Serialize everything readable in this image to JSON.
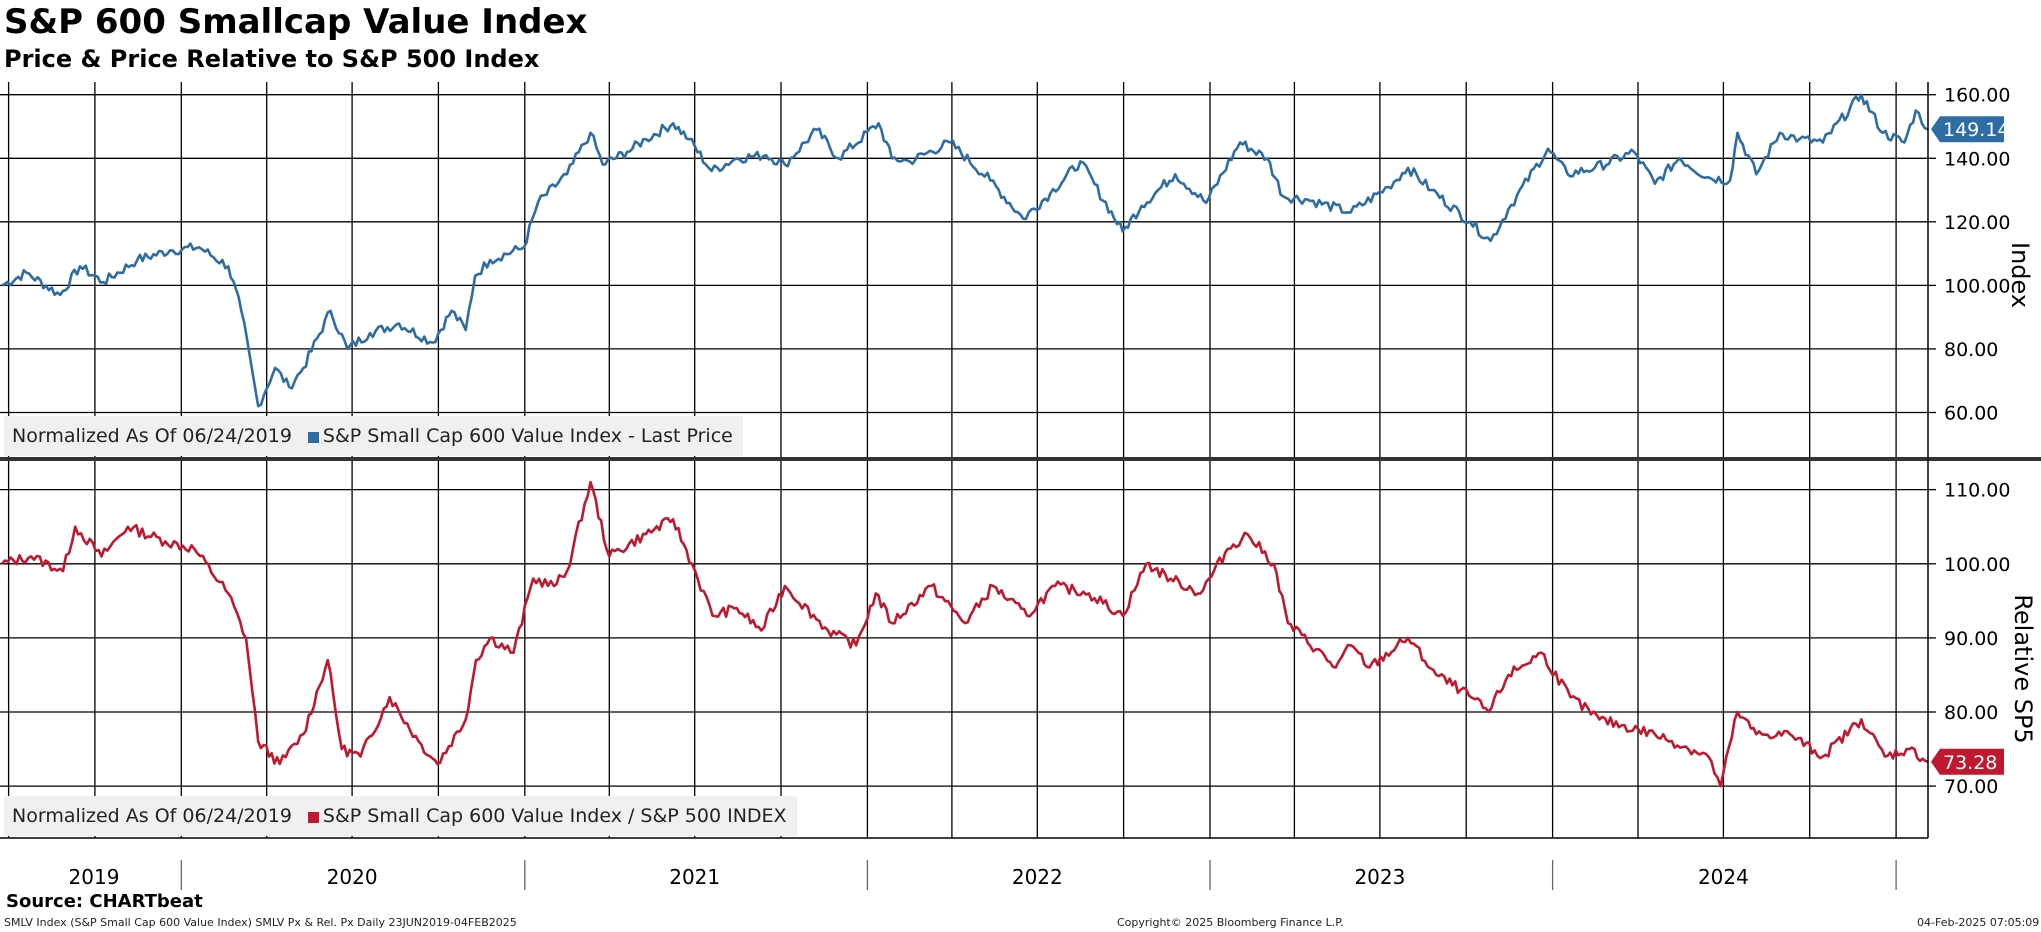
{
  "header": {
    "title": "S&P 600 Smallcap Value Index",
    "subtitle": "Price & Price Relative to S&P 500 Index"
  },
  "footer": {
    "source": "Source: CHARTbeat",
    "description": "SMLV Index (S&P Small Cap 600 Value Index) SMLV Px & Rel. Px  Daily 23JUN2019-04FEB2025",
    "copyright": "Copyright© 2025 Bloomberg Finance L.P.",
    "timestamp": "04-Feb-2025 07:05:09"
  },
  "colors": {
    "price_series": "#2e6da4",
    "relative_series": "#c0182e",
    "grid": "#000000",
    "legend_bg": "#f0f0f0"
  },
  "chart_data": [
    {
      "type": "line",
      "panel": "top",
      "legend_prefix": "Normalized As Of 06/24/2019",
      "ylabel": "Index",
      "ylim": [
        46,
        164
      ],
      "yticks": [
        60,
        80,
        100,
        120,
        140,
        160
      ],
      "ytick_labels": [
        "60.00",
        "80.00",
        "100.00",
        "120.00",
        "140.00",
        "160.00"
      ],
      "last_value_label": "149.14",
      "grid": true,
      "series": [
        {
          "name": "S&P Small Cap 600 Value Index - Last Price",
          "points": [
            [
              "2019-06-24",
              100
            ],
            [
              "2019-07-20",
              104
            ],
            [
              "2019-08-25",
              97
            ],
            [
              "2019-09-15",
              106
            ],
            [
              "2019-10-10",
              101
            ],
            [
              "2019-11-15",
              108
            ],
            [
              "2019-12-20",
              111
            ],
            [
              "2020-01-20",
              112
            ],
            [
              "2020-02-20",
              106
            ],
            [
              "2020-03-05",
              92
            ],
            [
              "2020-03-23",
              62
            ],
            [
              "2020-04-10",
              74
            ],
            [
              "2020-04-25",
              68
            ],
            [
              "2020-05-10",
              74
            ],
            [
              "2020-06-08",
              92
            ],
            [
              "2020-06-26",
              80
            ],
            [
              "2020-07-20",
              85
            ],
            [
              "2020-08-20",
              88
            ],
            [
              "2020-09-25",
              82
            ],
            [
              "2020-10-15",
              92
            ],
            [
              "2020-10-30",
              86
            ],
            [
              "2020-11-09",
              103
            ],
            [
              "2020-11-25",
              108
            ],
            [
              "2020-12-31",
              112
            ],
            [
              "2021-01-15",
              126
            ],
            [
              "2021-02-15",
              135
            ],
            [
              "2021-03-12",
              148
            ],
            [
              "2021-03-25",
              138
            ],
            [
              "2021-04-20",
              142
            ],
            [
              "2021-05-10",
              146
            ],
            [
              "2021-06-08",
              151
            ],
            [
              "2021-06-25",
              146
            ],
            [
              "2021-07-19",
              136
            ],
            [
              "2021-08-15",
              140
            ],
            [
              "2021-09-15",
              141
            ],
            [
              "2021-10-05",
              138
            ],
            [
              "2021-11-08",
              149
            ],
            [
              "2021-12-01",
              140
            ],
            [
              "2022-01-13",
              151
            ],
            [
              "2022-01-27",
              140
            ],
            [
              "2022-02-15",
              139
            ],
            [
              "2022-03-30",
              145
            ],
            [
              "2022-05-12",
              133
            ],
            [
              "2022-06-16",
              121
            ],
            [
              "2022-07-15",
              129
            ],
            [
              "2022-08-16",
              139
            ],
            [
              "2022-09-30",
              117
            ],
            [
              "2022-10-20",
              125
            ],
            [
              "2022-11-25",
              135
            ],
            [
              "2022-12-28",
              126
            ],
            [
              "2023-02-02",
              145
            ],
            [
              "2023-03-03",
              140
            ],
            [
              "2023-03-20",
              128
            ],
            [
              "2023-04-15",
              127
            ],
            [
              "2023-05-31",
              123
            ],
            [
              "2023-07-10",
              131
            ],
            [
              "2023-07-31",
              137
            ],
            [
              "2023-08-25",
              130
            ],
            [
              "2023-10-05",
              120
            ],
            [
              "2023-10-27",
              114
            ],
            [
              "2023-11-15",
              124
            ],
            [
              "2023-12-27",
              143
            ],
            [
              "2024-01-17",
              135
            ],
            [
              "2024-02-15",
              137
            ],
            [
              "2024-03-28",
              142
            ],
            [
              "2024-04-19",
              132
            ],
            [
              "2024-05-15",
              140
            ],
            [
              "2024-06-14",
              134
            ],
            [
              "2024-07-08",
              133
            ],
            [
              "2024-07-16",
              148
            ],
            [
              "2024-08-05",
              135
            ],
            [
              "2024-08-30",
              148
            ],
            [
              "2024-09-20",
              146
            ],
            [
              "2024-10-15",
              145
            ],
            [
              "2024-11-25",
              160
            ],
            [
              "2024-12-18",
              148
            ],
            [
              "2025-01-10",
              145
            ],
            [
              "2025-01-22",
              155
            ],
            [
              "2025-02-04",
              149.14
            ]
          ]
        }
      ]
    },
    {
      "type": "line",
      "panel": "bottom",
      "legend_prefix": "Normalized As Of 06/24/2019",
      "ylabel": "Relative SP5",
      "ylim": [
        63,
        114
      ],
      "yticks": [
        70,
        80,
        90,
        100,
        110
      ],
      "ytick_labels": [
        "70.00",
        "80.00",
        "90.00",
        "100.00",
        "110.00"
      ],
      "last_value_label": "73.28",
      "grid": true,
      "series": [
        {
          "name": "S&P Small Cap 600 Value Index / S&P 500 INDEX",
          "points": [
            [
              "2019-06-24",
              100
            ],
            [
              "2019-07-25",
              101
            ],
            [
              "2019-08-28",
              99
            ],
            [
              "2019-09-10",
              105
            ],
            [
              "2019-10-08",
              101
            ],
            [
              "2019-11-05",
              105
            ],
            [
              "2019-12-15",
              103
            ],
            [
              "2020-01-15",
              102
            ],
            [
              "2020-02-20",
              96
            ],
            [
              "2020-03-10",
              90
            ],
            [
              "2020-03-23",
              76
            ],
            [
              "2020-04-15",
              73
            ],
            [
              "2020-05-10",
              77
            ],
            [
              "2020-06-05",
              87
            ],
            [
              "2020-06-20",
              75
            ],
            [
              "2020-07-10",
              74
            ],
            [
              "2020-08-10",
              82
            ],
            [
              "2020-09-10",
              76
            ],
            [
              "2020-09-30",
              73
            ],
            [
              "2020-10-30",
              79
            ],
            [
              "2020-11-10",
              87
            ],
            [
              "2020-11-25",
              90
            ],
            [
              "2020-12-20",
              88
            ],
            [
              "2021-01-10",
              98
            ],
            [
              "2021-02-01",
              97
            ],
            [
              "2021-02-15",
              99
            ],
            [
              "2021-03-12",
              111
            ],
            [
              "2021-04-01",
              101
            ],
            [
              "2021-05-10",
              104
            ],
            [
              "2021-06-08",
              106
            ],
            [
              "2021-06-28",
              100
            ],
            [
              "2021-07-20",
              93
            ],
            [
              "2021-08-15",
              94
            ],
            [
              "2021-09-10",
              91
            ],
            [
              "2021-10-05",
              97
            ],
            [
              "2021-11-20",
              91
            ],
            [
              "2021-12-20",
              89
            ],
            [
              "2022-01-10",
              96
            ],
            [
              "2022-01-27",
              92
            ],
            [
              "2022-03-10",
              97
            ],
            [
              "2022-04-15",
              92
            ],
            [
              "2022-05-15",
              97
            ],
            [
              "2022-06-20",
              93
            ],
            [
              "2022-07-20",
              97
            ],
            [
              "2022-08-25",
              96
            ],
            [
              "2022-09-30",
              93
            ],
            [
              "2022-10-25",
              100
            ],
            [
              "2022-11-20",
              98
            ],
            [
              "2022-12-22",
              96
            ],
            [
              "2023-01-20",
              102
            ],
            [
              "2023-02-10",
              104
            ],
            [
              "2023-03-10",
              100
            ],
            [
              "2023-03-25",
              92
            ],
            [
              "2023-05-15",
              86
            ],
            [
              "2023-05-31",
              89
            ],
            [
              "2023-06-20",
              86
            ],
            [
              "2023-07-31",
              90
            ],
            [
              "2023-08-30",
              85
            ],
            [
              "2023-09-25",
              83
            ],
            [
              "2023-10-25",
              80
            ],
            [
              "2023-11-15",
              85
            ],
            [
              "2023-12-20",
              88
            ],
            [
              "2024-01-20",
              82
            ],
            [
              "2024-02-20",
              79
            ],
            [
              "2024-04-19",
              77
            ],
            [
              "2024-06-15",
              74
            ],
            [
              "2024-06-28",
              70
            ],
            [
              "2024-07-16",
              80
            ],
            [
              "2024-08-05",
              77
            ],
            [
              "2024-09-10",
              77
            ],
            [
              "2024-10-15",
              74
            ],
            [
              "2024-11-25",
              79
            ],
            [
              "2024-12-20",
              74
            ],
            [
              "2025-01-15",
              75
            ],
            [
              "2025-02-04",
              73.28
            ]
          ]
        }
      ]
    }
  ],
  "x_axis": {
    "start": "2019-06-24",
    "end": "2025-02-04",
    "year_labels": [
      {
        "year": "2019",
        "at": "2019-09-30"
      },
      {
        "year": "2020",
        "at": "2020-07-01"
      },
      {
        "year": "2021",
        "at": "2021-07-01"
      },
      {
        "year": "2022",
        "at": "2022-07-01"
      },
      {
        "year": "2023",
        "at": "2023-07-01"
      },
      {
        "year": "2024",
        "at": "2024-07-01"
      }
    ]
  }
}
